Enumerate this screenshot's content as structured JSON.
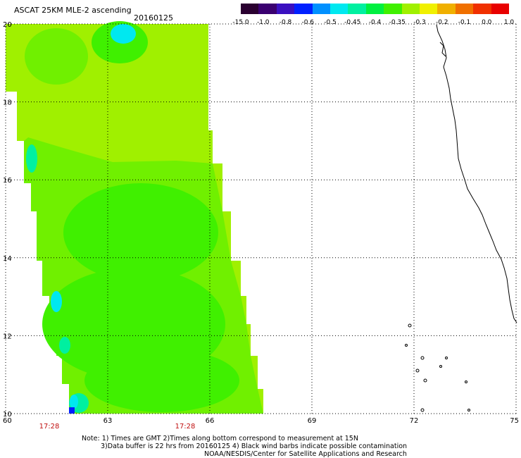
{
  "header": {
    "title": "ASCAT 25KM MLE-2 ascending",
    "date": "20160125"
  },
  "colorbar": {
    "colors": [
      "#2a0030",
      "#3a0070",
      "#3a10c0",
      "#0020ff",
      "#0090ff",
      "#00e8f0",
      "#00f0a0",
      "#00f040",
      "#40f000",
      "#a0f000",
      "#f0f000",
      "#f0b000",
      "#f07000",
      "#f03000",
      "#e80000"
    ],
    "labels": [
      "-15.0",
      "-1.0",
      "-0.8",
      "-0.6",
      "-0.5",
      "-0.45",
      "-0.4",
      "-0.35",
      "-0.3",
      "-0.2",
      "-0.1",
      "0.0",
      "1.0"
    ]
  },
  "map": {
    "lon_range": [
      60,
      75
    ],
    "lat_range": [
      10,
      20
    ],
    "x_tick_labels": [
      "60",
      "63",
      "66",
      "69",
      "72",
      "75"
    ],
    "y_tick_labels": [
      "20",
      "18",
      "16",
      "14",
      "12",
      "10"
    ],
    "pass_times": [
      "17:28",
      "17:28"
    ],
    "swath_colors": {
      "background": "#a0f000",
      "green": "#40f000",
      "mid_green": "#70f000",
      "cyan": "#00e8f0",
      "teal": "#00f0a0",
      "blue": "#0020ff"
    }
  },
  "footer": {
    "note_line1": "Note: 1) Times are GMT 2)Times along bottom correspond to measurement at 15N",
    "note_line2": "3)Data buffer is 22 hrs from 20160125 4) Black wind barbs indicate possible contamination",
    "credit": "NOAA/NESDIS/Center for Satellite Applications and Research"
  }
}
